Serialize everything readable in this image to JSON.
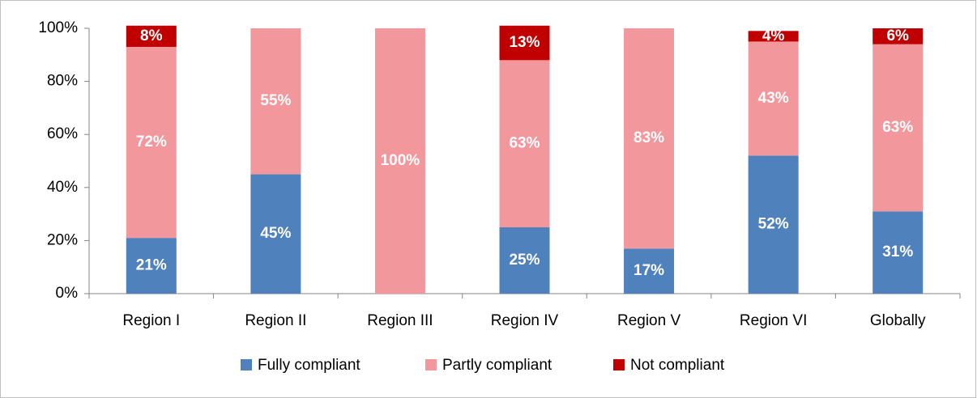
{
  "chart_data": {
    "type": "stacked_bar",
    "categories": [
      "Region I",
      "Region II",
      "Region III",
      "Region IV",
      "Region V",
      "Region VI",
      "Globally"
    ],
    "series": [
      {
        "name": "Fully compliant",
        "color": "#4f81bd",
        "values": [
          21,
          45,
          0,
          25,
          17,
          52,
          31
        ],
        "value_labels": [
          "21%",
          "45%",
          null,
          "25%",
          "17%",
          "52%",
          "31%"
        ]
      },
      {
        "name": "Partly compliant",
        "color": "#f2989d",
        "values": [
          72,
          55,
          100,
          63,
          83,
          43,
          63
        ],
        "value_labels": [
          "72%",
          "55%",
          "100%",
          "63%",
          "83%",
          "43%",
          "63%"
        ]
      },
      {
        "name": "Not compliant",
        "color": "#c00000",
        "values": [
          8,
          0,
          0,
          13,
          0,
          4,
          6
        ],
        "value_labels": [
          "8%",
          null,
          null,
          "13%",
          null,
          "4%",
          "6%"
        ]
      }
    ],
    "ylim": [
      0,
      100
    ],
    "yticks": [
      {
        "value": 0,
        "label": "0%"
      },
      {
        "value": 20,
        "label": "20%"
      },
      {
        "value": 40,
        "label": "40%"
      },
      {
        "value": 60,
        "label": "60%"
      },
      {
        "value": 80,
        "label": "80%"
      },
      {
        "value": 100,
        "label": "100%"
      }
    ],
    "legend": "bottom"
  }
}
